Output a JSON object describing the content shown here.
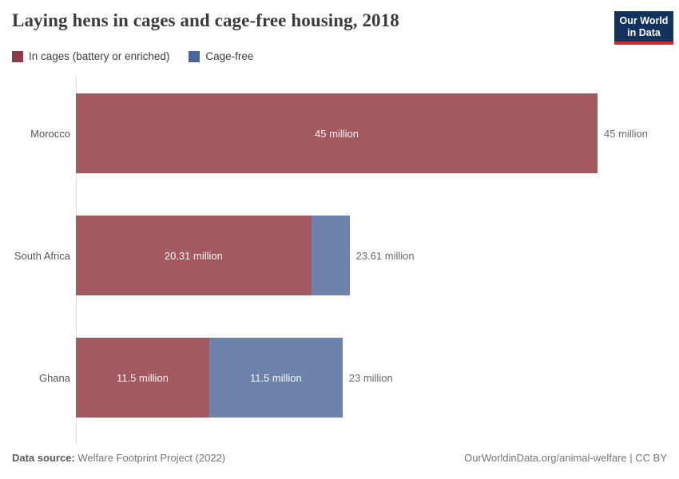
{
  "title": "Laying hens in cages and cage-free housing, 2018",
  "logo": {
    "line1": "Our World",
    "line2": "in Data"
  },
  "colors": {
    "bar_cages": "#a2595f",
    "bar_cagefree": "#6d83ab",
    "legend_cages": "#8e3c4b",
    "legend_cagefree": "#4a679c",
    "logo_navy": "#13335c",
    "logo_red": "#d7282f"
  },
  "legend": {
    "items": [
      {
        "label": "In cages (battery or enriched)",
        "color": "#8e3c4b"
      },
      {
        "label": "Cage-free",
        "color": "#4a679c"
      }
    ]
  },
  "chart_data": {
    "type": "bar",
    "orientation": "horizontal",
    "stacked": true,
    "title": "Laying hens in cages and cage-free housing, 2018",
    "categories": [
      "Morocco",
      "South Africa",
      "Ghana"
    ],
    "series": [
      {
        "name": "In cages (battery or enriched)",
        "color": "#a2595f",
        "values": [
          45,
          20.31,
          11.5
        ],
        "labels": [
          "45 million",
          "20.31 million",
          "11.5 million"
        ]
      },
      {
        "name": "Cage-free",
        "color": "#6d83ab",
        "values": [
          0,
          3.3,
          11.5
        ],
        "labels": [
          "",
          "",
          "11.5 million"
        ]
      }
    ],
    "totals": [
      45,
      23.61,
      23
    ],
    "total_labels": [
      "45 million",
      "23.61 million",
      "23 million"
    ],
    "unit": "million",
    "xlim": [
      0,
      45
    ],
    "grid": false,
    "legend_position": "top-left"
  },
  "footer": {
    "source_label": "Data source:",
    "source_value": "Welfare Footprint Project (2022)",
    "credit": "OurWorldinData.org/animal-welfare | CC BY"
  }
}
